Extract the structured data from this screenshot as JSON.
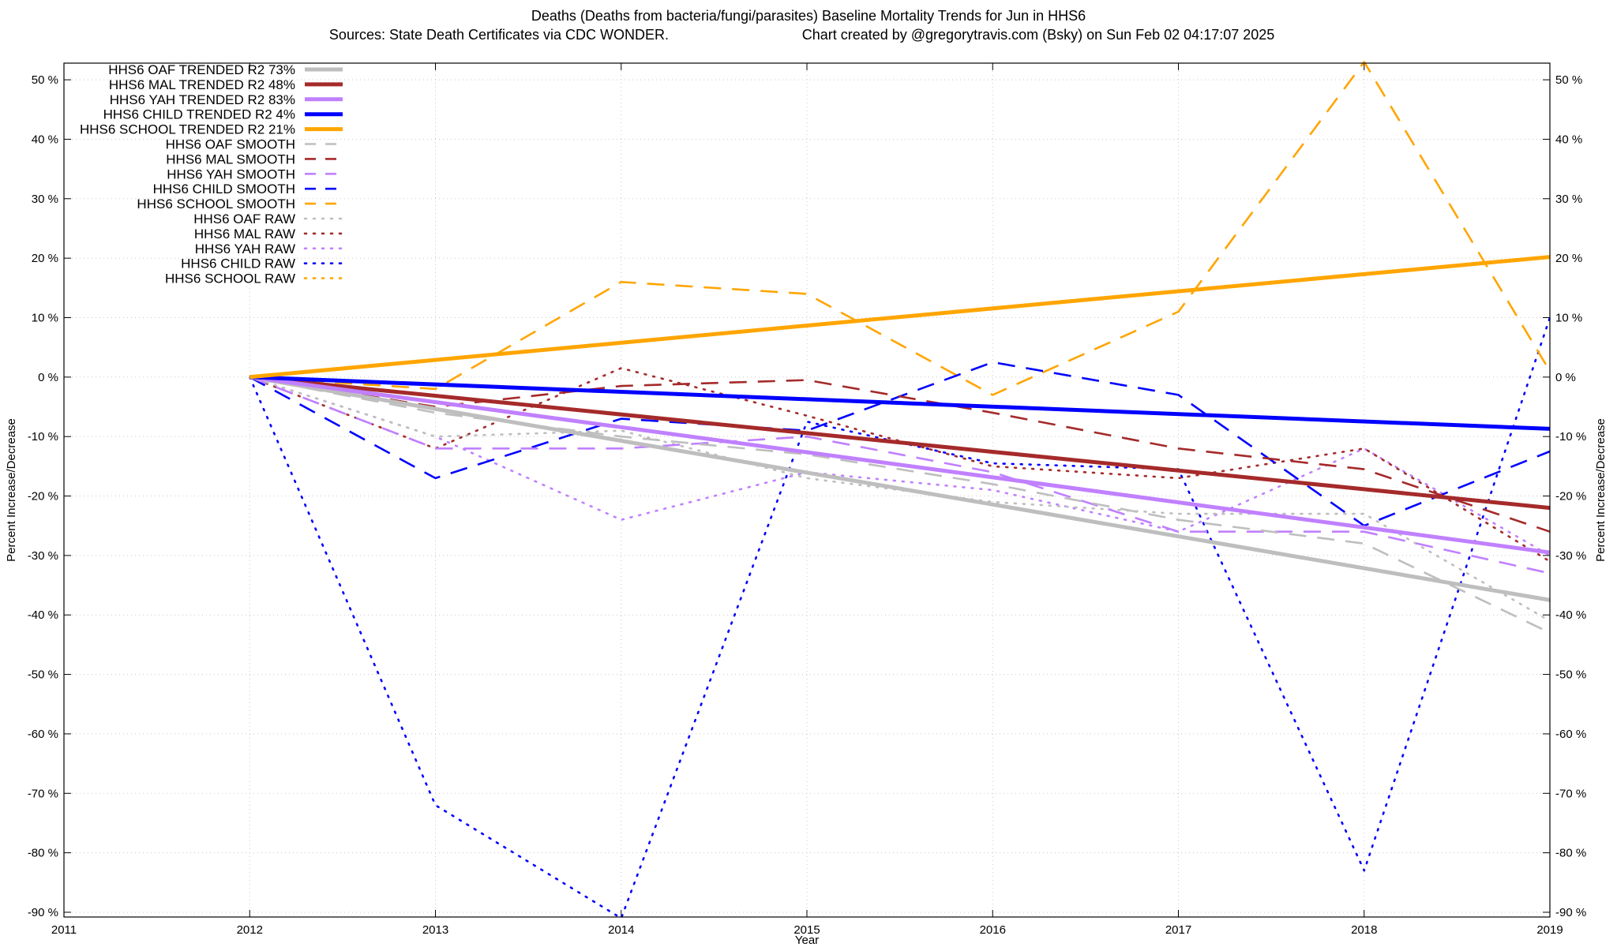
{
  "chart_data": {
    "type": "line",
    "title_line1": "Deaths (Deaths from bacteria/fungi/parasites)  Baseline Mortality Trends for Jun in HHS6",
    "title_line2_left": "Sources: State Death Certificates via CDC WONDER.",
    "title_line2_right": "Chart created by @gregorytravis.com (Bsky) on Sun Feb 02 04:17:07 2025",
    "xlabel": "Year",
    "ylabel_left": "Percent Increase/Decrease",
    "ylabel_right": "Percent Increase/Decrease",
    "xlim": [
      2011,
      2019
    ],
    "ylim": [
      -92,
      53
    ],
    "x_ticks": [
      2011,
      2012,
      2013,
      2014,
      2015,
      2016,
      2017,
      2018,
      2019
    ],
    "x_tick_labels": [
      "2011",
      "2012",
      "2013",
      "2014",
      "2015",
      "2016",
      "2017",
      "2018",
      "2019"
    ],
    "y_ticks": [
      50,
      40,
      30,
      20,
      10,
      0,
      -10,
      -20,
      -30,
      -40,
      -50,
      -60,
      -70,
      -80,
      -90
    ],
    "y_tick_labels": [
      "50 %",
      "40 %",
      "30 %",
      "20 %",
      "10 %",
      "0 %",
      "-10 %",
      "-20 %",
      "-30 %",
      "-40 %",
      "-50 %",
      "-60 %",
      "-70 %",
      "-80 %",
      "-90 %"
    ],
    "grid": true,
    "legend_position": "top-left",
    "series": [
      {
        "name": "HHS6 OAF TRENDED R2  73%",
        "style": "solid",
        "color": "#bebebe",
        "x": [
          2012,
          2019
        ],
        "y": [
          0,
          -37.5
        ]
      },
      {
        "name": "HHS6 MAL TRENDED R2  48%",
        "style": "solid",
        "color": "#a52a2a",
        "x": [
          2012,
          2019
        ],
        "y": [
          0,
          -22
        ]
      },
      {
        "name": "HHS6 YAH TRENDED R2  83%",
        "style": "solid",
        "color": "#c080ff",
        "x": [
          2012,
          2019
        ],
        "y": [
          0,
          -29.5
        ]
      },
      {
        "name": "HHS6 CHILD TRENDED R2  4%",
        "style": "solid",
        "color": "#0000ff",
        "x": [
          2012,
          2019
        ],
        "y": [
          0,
          -8.7
        ]
      },
      {
        "name": "HHS6 SCHOOL TRENDED R2  21%",
        "style": "solid",
        "color": "#ffa500",
        "x": [
          2012,
          2019
        ],
        "y": [
          0,
          20.2
        ]
      },
      {
        "name": "HHS6 OAF SMOOTH",
        "style": "dashed",
        "color": "#bebebe",
        "x": [
          2012,
          2013,
          2014,
          2015,
          2016,
          2017,
          2018,
          2019
        ],
        "y": [
          0,
          -6,
          -10,
          -13,
          -18,
          -24,
          -28,
          -43
        ]
      },
      {
        "name": "HHS6 MAL SMOOTH",
        "style": "dashed",
        "color": "#a52a2a",
        "x": [
          2012,
          2013,
          2014,
          2015,
          2016,
          2017,
          2018,
          2019
        ],
        "y": [
          0,
          -5,
          -1.5,
          -0.5,
          -6,
          -12,
          -15.5,
          -26
        ]
      },
      {
        "name": "HHS6 YAH SMOOTH",
        "style": "dashed",
        "color": "#c080ff",
        "x": [
          2012,
          2013,
          2014,
          2015,
          2016,
          2017,
          2018,
          2019
        ],
        "y": [
          0,
          -12,
          -12,
          -10,
          -16,
          -26,
          -26,
          -33
        ]
      },
      {
        "name": "HHS6 CHILD SMOOTH",
        "style": "dashed",
        "color": "#0000ff",
        "x": [
          2012,
          2013,
          2014,
          2015,
          2016,
          2017,
          2018,
          2019
        ],
        "y": [
          0,
          -17,
          -7,
          -9,
          2.5,
          -3,
          -25,
          -12.5
        ]
      },
      {
        "name": "HHS6 SCHOOL SMOOTH",
        "style": "dashed",
        "color": "#ffa500",
        "x": [
          2012,
          2013,
          2014,
          2015,
          2016,
          2017,
          2018,
          2019
        ],
        "y": [
          0,
          -2,
          16,
          14,
          -3,
          11,
          53,
          1
        ]
      },
      {
        "name": "HHS6 OAF RAW",
        "style": "dotted",
        "color": "#bebebe",
        "x": [
          2012,
          2013,
          2014,
          2015,
          2016,
          2017,
          2018,
          2019
        ],
        "y": [
          0,
          -10,
          -9,
          -17,
          -21,
          -23,
          -23,
          -41
        ]
      },
      {
        "name": "HHS6 MAL RAW",
        "style": "dotted",
        "color": "#a52a2a",
        "x": [
          2012,
          2013,
          2014,
          2015,
          2016,
          2017,
          2018,
          2019
        ],
        "y": [
          0,
          -12,
          1.5,
          -6.5,
          -15,
          -17,
          -12,
          -31
        ]
      },
      {
        "name": "HHS6 YAH RAW",
        "style": "dotted",
        "color": "#c080ff",
        "x": [
          2012,
          2013,
          2014,
          2015,
          2016,
          2017,
          2018,
          2019
        ],
        "y": [
          0,
          -10,
          -24,
          -16,
          -19,
          -26,
          -12,
          -30
        ]
      },
      {
        "name": "HHS6 CHILD RAW",
        "style": "dotted",
        "color": "#0000ff",
        "x": [
          2012,
          2013,
          2014,
          2015,
          2016,
          2017,
          2018,
          2019
        ],
        "y": [
          0,
          -72,
          -91,
          -7.5,
          -14.5,
          -15.5,
          -83,
          10
        ]
      },
      {
        "name": "HHS6 SCHOOL RAW",
        "style": "dotted",
        "color": "#ffa500",
        "x": [
          2012
        ],
        "y": [
          0
        ]
      }
    ]
  }
}
